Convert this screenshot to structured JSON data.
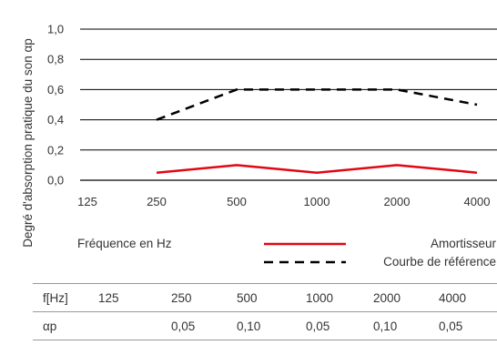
{
  "chart_data": {
    "type": "line",
    "categories": [
      "125",
      "250",
      "500",
      "1000",
      "2000",
      "4000"
    ],
    "series": [
      {
        "name": "Amortisseur",
        "values": [
          null,
          0.05,
          0.1,
          0.05,
          0.1,
          0.05
        ],
        "color": "#e30613",
        "style": "solid"
      },
      {
        "name": "Courbe de référence",
        "values": [
          null,
          0.4,
          0.6,
          0.6,
          0.6,
          0.5
        ],
        "color": "#000000",
        "style": "dashed"
      }
    ],
    "ylabel": "Degré d'absorption pratique du son αp",
    "xlabel": "Fréquence en Hz",
    "ylim": [
      0,
      1.0
    ],
    "yticks": [
      "0,0",
      "0,2",
      "0,4",
      "0,6",
      "0,8",
      "1,0"
    ],
    "grid": "horizontal",
    "legend_position": "bottom"
  },
  "table": {
    "rows": [
      [
        "f[Hz]",
        "125",
        "250",
        "500",
        "1000",
        "2000",
        "4000"
      ],
      [
        "αp",
        "",
        "0,05",
        "0,10",
        "0,05",
        "0,10",
        "0,05"
      ]
    ]
  }
}
